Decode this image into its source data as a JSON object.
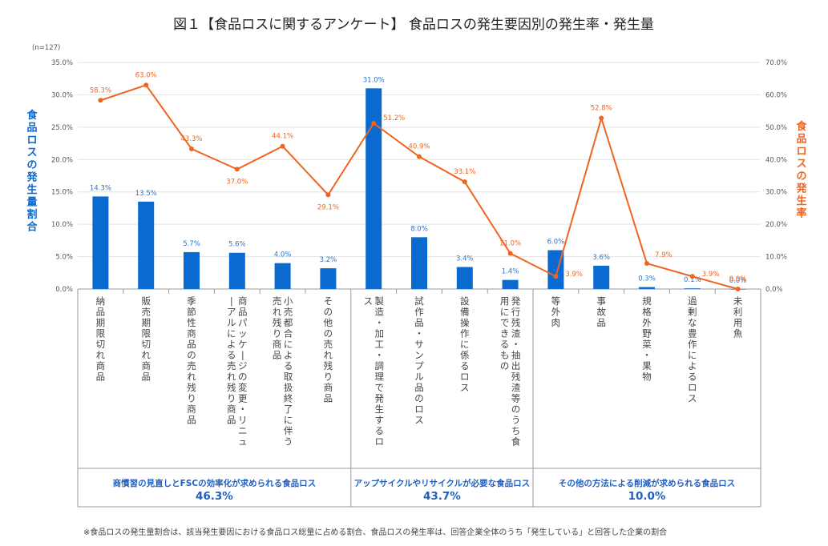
{
  "title": "図１【食品ロスに関するアンケート】 食品ロスの発生要因別の発生率・発生量",
  "sample_note": "(n=127)",
  "footnote": "※食品ロスの発生量割合は、該当発生要因における食品ロス総量に占める割合、食品ロスの発生率は、回答企業全体のうち「発生している」と回答した企業の割合",
  "colors": {
    "bar": "#0b6ad0",
    "line": "#f0641e",
    "left_axis_label": "#0b6ad0",
    "right_axis_label": "#f0641e",
    "group_text": "#1f5fc0"
  },
  "chart_data": {
    "type": "bar+line",
    "categories": [
      "納品期限切れ商品",
      "販売期限切れ商品",
      "季節性商品の売れ残り商品",
      "商品パッケージの変更・リニューアルによる売れ残り商品",
      "小売都合による取扱終了に伴う売れ残り商品",
      "その他の売れ残り商品",
      "製造・加工・調理で発生するロス",
      "試作品・サンプル品のロス",
      "設備操作に係るロス",
      "発行残渣・抽出残渣等のうち食用にできるもの",
      "等外肉",
      "事故品",
      "規格外野菜・果物",
      "過剰な豊作によるロス",
      "未利用魚"
    ],
    "series": [
      {
        "name": "食品ロスの発生量割合",
        "type": "bar",
        "axis": "left",
        "values": [
          14.3,
          13.5,
          5.7,
          5.6,
          4.0,
          3.2,
          31.0,
          8.0,
          3.4,
          1.4,
          6.0,
          3.6,
          0.3,
          0.1,
          0.0
        ],
        "labels": [
          "14.3%",
          "13.5%",
          "5.7%",
          "5.6%",
          "4.0%",
          "3.2%",
          "31.0%",
          "8.0%",
          "3.4%",
          "1.4%",
          "6.0%",
          "3.6%",
          "0.3%",
          "0.1%",
          "0.0%"
        ]
      },
      {
        "name": "食品ロスの発生率",
        "type": "line",
        "axis": "right",
        "values": [
          58.3,
          63.0,
          43.3,
          37.0,
          44.1,
          29.1,
          51.2,
          40.9,
          33.1,
          11.0,
          3.9,
          52.8,
          7.9,
          3.9,
          0.0
        ],
        "labels": [
          "58.3%",
          "63.0%",
          "43.3%",
          "37.0%",
          "44.1%",
          "29.1%",
          "51.2%",
          "40.9%",
          "33.1%",
          "11.0%",
          "3.9%",
          "52.8%",
          "7.9%",
          "3.9%",
          "0.0%"
        ]
      }
    ],
    "y_left": {
      "label": "食品ロスの発生量割合",
      "range": [
        0,
        35
      ],
      "ticks": [
        "0.0%",
        "5.0%",
        "10.0%",
        "15.0%",
        "20.0%",
        "25.0%",
        "30.0%",
        "35.0%"
      ]
    },
    "y_right": {
      "label": "食品ロスの発生率",
      "range": [
        0,
        70
      ],
      "ticks": [
        "0.0%",
        "10.0%",
        "20.0%",
        "30.0%",
        "40.0%",
        "50.0%",
        "60.0%",
        "70.0%"
      ]
    },
    "grid": true,
    "groups": [
      {
        "label": "商慣習の見直しとFSCの効率化が求められる食品ロス",
        "pct": "46.3%",
        "from": 0,
        "to": 5
      },
      {
        "label": "アップサイクルやリサイクルが必要な食品ロス",
        "pct": "43.7%",
        "from": 6,
        "to": 9
      },
      {
        "label": "その他の方法による削減が求められる食品ロス",
        "pct": "10.0%",
        "from": 10,
        "to": 14
      }
    ]
  }
}
